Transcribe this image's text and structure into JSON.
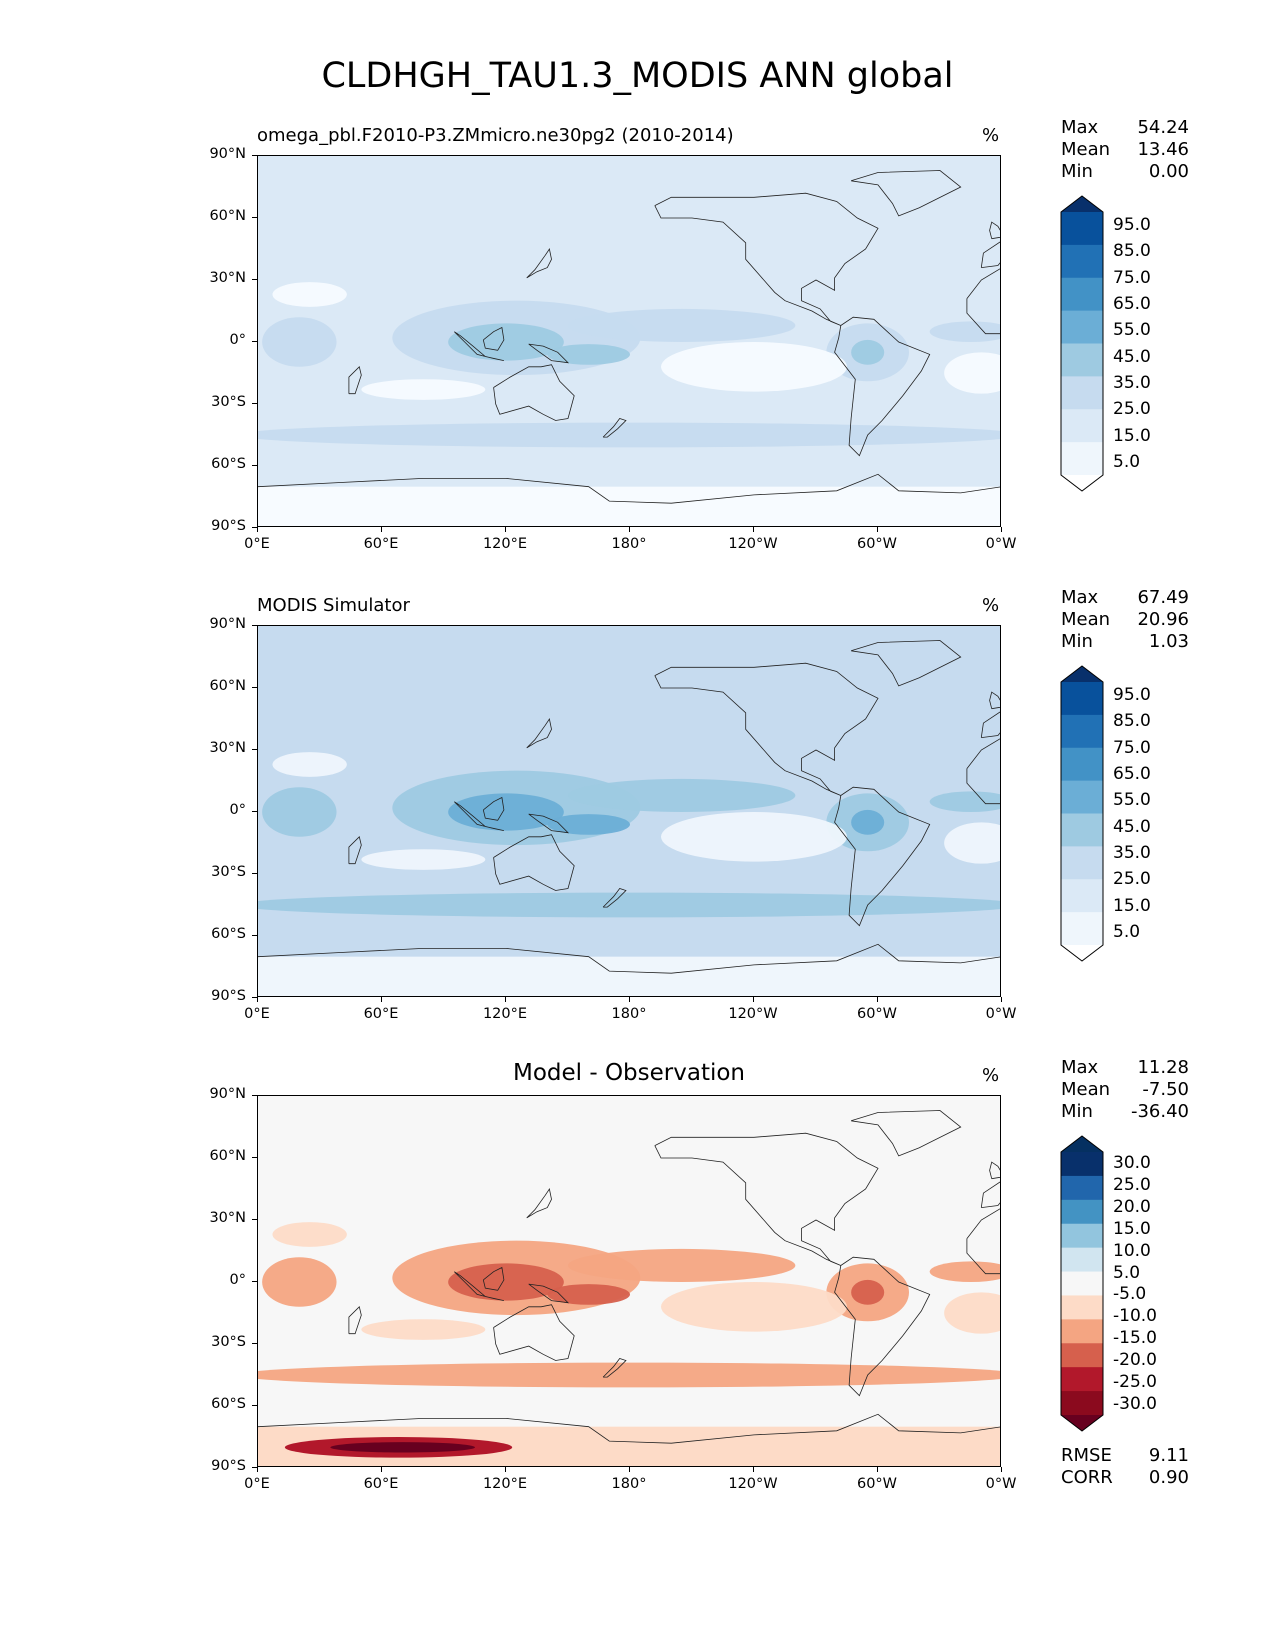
{
  "title": "CLDHGH_TAU1.3_MODIS ANN global",
  "lat_labels": [
    "90°N",
    "60°N",
    "30°N",
    "0°",
    "30°S",
    "60°S",
    "90°S"
  ],
  "lon_labels": [
    "0°E",
    "60°E",
    "120°E",
    "180°",
    "120°W",
    "60°W",
    "0°W"
  ],
  "panels": [
    {
      "title": "omega_pbl.F2010-P3.ZMmicro.ne30pg2 (2010-2014)",
      "units": "%",
      "stats": [
        {
          "label": "Max",
          "value": "54.24"
        },
        {
          "label": "Mean",
          "value": "13.46"
        },
        {
          "label": "Min",
          "value": "0.00"
        }
      ],
      "colorbar": {
        "labels": [
          "95.0",
          "85.0",
          "75.0",
          "65.0",
          "55.0",
          "45.0",
          "35.0",
          "25.0",
          "15.0",
          "5.0"
        ],
        "colors": [
          "#08306b",
          "#08519c",
          "#2171b5",
          "#4292c6",
          "#6baed6",
          "#9ecae1",
          "#c6dbef",
          "#dbe9f6",
          "#eff6fc",
          "#ffffff"
        ]
      },
      "colors": {
        "ocean": "#dbe9f6",
        "land": "#eff6fc",
        "tropics": "#c6dbef",
        "warm_pool": "#9ecae1",
        "clear": "#f7fbff"
      }
    },
    {
      "title": "MODIS Simulator",
      "units": "%",
      "stats": [
        {
          "label": "Max",
          "value": "67.49"
        },
        {
          "label": "Mean",
          "value": "20.96"
        },
        {
          "label": "Min",
          "value": "1.03"
        }
      ],
      "colorbar": {
        "labels": [
          "95.0",
          "85.0",
          "75.0",
          "65.0",
          "55.0",
          "45.0",
          "35.0",
          "25.0",
          "15.0",
          "5.0"
        ],
        "colors": [
          "#08306b",
          "#08519c",
          "#2171b5",
          "#4292c6",
          "#6baed6",
          "#9ecae1",
          "#c6dbef",
          "#dbe9f6",
          "#eff6fc",
          "#ffffff"
        ]
      },
      "colors": {
        "ocean": "#c6dbef",
        "land": "#dbe9f6",
        "tropics": "#9ecae1",
        "warm_pool": "#6baed6",
        "clear": "#eff6fc"
      }
    },
    {
      "title": "Model - Observation",
      "units": "%",
      "stats": [
        {
          "label": "Max",
          "value": "11.28"
        },
        {
          "label": "Mean",
          "value": "-7.50"
        },
        {
          "label": "Min",
          "value": "-36.40"
        }
      ],
      "extra_stats": [
        {
          "label": "RMSE",
          "value": "9.11"
        },
        {
          "label": "CORR",
          "value": "0.90"
        }
      ],
      "colorbar": {
        "labels": [
          "30.0",
          "25.0",
          "20.0",
          "15.0",
          "10.0",
          "5.0",
          "-5.0",
          "-10.0",
          "-15.0",
          "-20.0",
          "-25.0",
          "-30.0"
        ],
        "colors": [
          "#053061",
          "#08306b",
          "#2166ac",
          "#4393c3",
          "#92c5de",
          "#d1e5f0",
          "#f7f7f7",
          "#fddbc7",
          "#f4a582",
          "#d6604d",
          "#b2182b",
          "#8b0a1e",
          "#67001f"
        ]
      },
      "colors": {
        "ocean": "#f7f7f7",
        "land": "#f7f7f7",
        "tropics": "#f4a582",
        "warm_pool": "#d6604d",
        "clear": "#fddbc7"
      }
    }
  ]
}
